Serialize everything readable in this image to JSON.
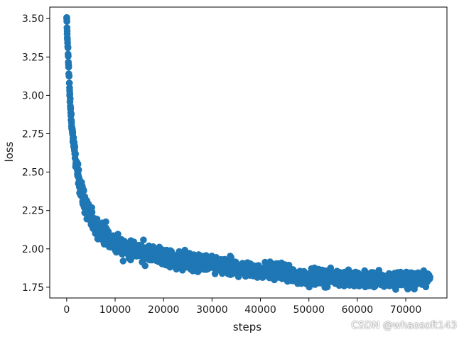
{
  "chart_data": {
    "type": "scatter",
    "title": "",
    "xlabel": "steps",
    "ylabel": "loss",
    "xlim": [
      -3500,
      78500
    ],
    "ylim": [
      1.68,
      3.575
    ],
    "x_ticks": [
      0,
      10000,
      20000,
      30000,
      40000,
      50000,
      60000,
      70000
    ],
    "y_ticks": [
      1.75,
      2.0,
      2.25,
      2.5,
      2.75,
      3.0,
      3.25,
      3.5
    ],
    "grid": false,
    "legend": "none",
    "marker_color": "#1f77b4",
    "connected_line": true,
    "series": [
      {
        "trend": [
          [
            0,
            3.5
          ],
          [
            100,
            3.4
          ],
          [
            250,
            3.31
          ],
          [
            400,
            3.19
          ],
          [
            600,
            3.03
          ],
          [
            800,
            2.91
          ],
          [
            1000,
            2.82
          ],
          [
            1300,
            2.72
          ],
          [
            1600,
            2.64
          ],
          [
            2000,
            2.55
          ],
          [
            2500,
            2.46
          ],
          [
            3000,
            2.38
          ],
          [
            3500,
            2.32
          ],
          [
            4000,
            2.27
          ],
          [
            5000,
            2.2
          ],
          [
            6000,
            2.15
          ],
          [
            7000,
            2.11
          ],
          [
            8000,
            2.08
          ],
          [
            10000,
            2.04
          ],
          [
            12000,
            2.01
          ],
          [
            15000,
            1.98
          ],
          [
            18000,
            1.96
          ],
          [
            20000,
            1.945
          ],
          [
            25000,
            1.92
          ],
          [
            30000,
            1.895
          ],
          [
            35000,
            1.875
          ],
          [
            40000,
            1.86
          ],
          [
            45000,
            1.85
          ],
          [
            46000,
            1.83
          ],
          [
            50000,
            1.815
          ],
          [
            55000,
            1.81
          ],
          [
            60000,
            1.805
          ],
          [
            65000,
            1.8
          ],
          [
            70000,
            1.8
          ],
          [
            75000,
            1.805
          ]
        ],
        "spread": [
          [
            0,
            0.02
          ],
          [
            3000,
            0.06
          ],
          [
            10000,
            0.06
          ],
          [
            30000,
            0.05
          ],
          [
            46000,
            0.045
          ],
          [
            75000,
            0.045
          ]
        ],
        "x_range": [
          0,
          75000
        ],
        "point_count": 1400
      }
    ]
  },
  "watermark": "CSDN @whaosoft143"
}
